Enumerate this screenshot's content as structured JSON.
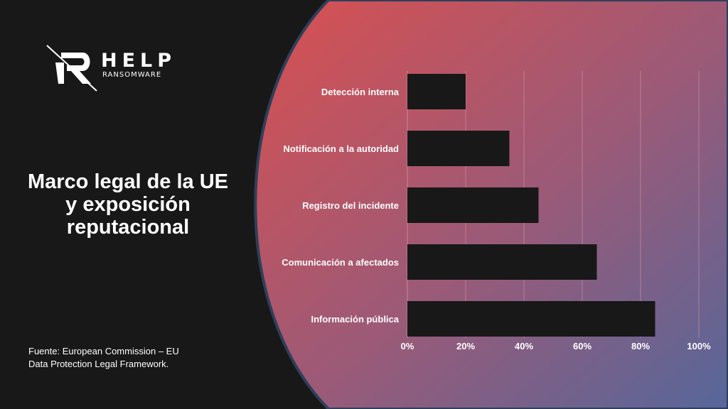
{
  "brand": {
    "name": "HELP",
    "sub": "RANSOMWARE"
  },
  "title": "Marco legal de la UE y exposición reputacional",
  "source": "Fuente: European Commission – EU Data Protection Legal Framework.",
  "colors": {
    "left_bg": "#181818",
    "gradient_start": "#d95050",
    "gradient_end": "#5a6590",
    "bar": "#181818",
    "grid": "#d89aa8",
    "panel_border": "#2f3f5a"
  },
  "chart_data": {
    "type": "bar",
    "orientation": "horizontal",
    "categories": [
      "Detección interna",
      "Notificación a la autoridad",
      "Registro del incidente",
      "Comunicación a afectados",
      "Información pública"
    ],
    "values": [
      20,
      35,
      45,
      65,
      85
    ],
    "xlim": [
      0,
      100
    ],
    "x_ticks": [
      "0%",
      "20%",
      "40%",
      "60%",
      "80%",
      "100%"
    ],
    "grid": true
  }
}
